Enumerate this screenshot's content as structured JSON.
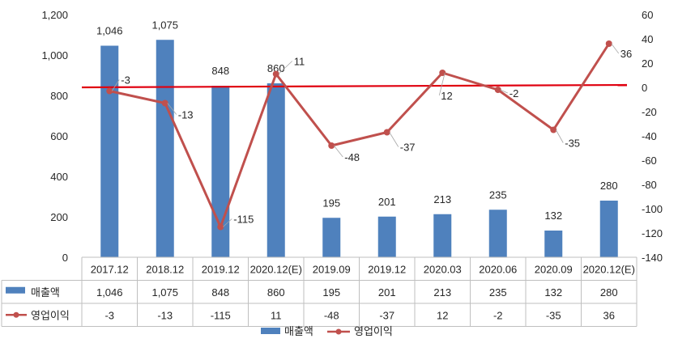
{
  "chart_data": {
    "type": "bar",
    "categories": [
      "2017.12",
      "2018.12",
      "2019.12",
      "2020.12(E)",
      "2019.09",
      "2019.12",
      "2020.03",
      "2020.06",
      "2020.09",
      "2020.12(E)"
    ],
    "series": [
      {
        "name": "매출액",
        "type": "bar",
        "axis": "left",
        "color": "#4f81bd",
        "values": [
          1046,
          1075,
          848,
          860,
          195,
          201,
          213,
          235,
          132,
          280
        ],
        "labels": [
          "1,046",
          "1,075",
          "848",
          "860",
          "195",
          "201",
          "213",
          "235",
          "132",
          "280"
        ]
      },
      {
        "name": "영업이익",
        "type": "line",
        "axis": "right",
        "color": "#c0504d",
        "values": [
          -3,
          -13,
          -115,
          11,
          -48,
          -37,
          12,
          -2,
          -35,
          36
        ],
        "labels": [
          "-3",
          "-13",
          "-115",
          "11",
          "-48",
          "-37",
          "12",
          "-2",
          "-35",
          "36"
        ]
      }
    ],
    "left_axis": {
      "ylim": [
        0,
        1200
      ],
      "ticks": [
        0,
        200,
        400,
        600,
        800,
        1000,
        1200
      ],
      "tick_labels": [
        "0",
        "200",
        "400",
        "600",
        "800",
        "1,000",
        "1,200"
      ]
    },
    "right_axis": {
      "ylim": [
        -140,
        60
      ],
      "ticks": [
        -140,
        -120,
        -100,
        -80,
        -60,
        -40,
        -20,
        0,
        20,
        40,
        60
      ],
      "tick_labels": [
        "-140",
        "-120",
        "-100",
        "-80",
        "-60",
        "-40",
        "-20",
        "0",
        "20",
        "40",
        "60"
      ]
    },
    "trend_line": {
      "color": "#e0000f",
      "from": 0,
      "to": 2
    },
    "data_table": true,
    "legend_position": "bottom",
    "grid": false
  }
}
